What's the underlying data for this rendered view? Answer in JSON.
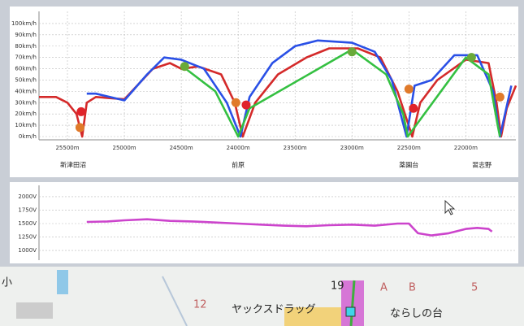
{
  "chart_data": [
    {
      "type": "line",
      "xlim": [
        25750,
        21560
      ],
      "ylim": [
        0,
        105
      ],
      "grid": true,
      "xticks": [
        {
          "value": 25500,
          "label": "25500m"
        },
        {
          "value": 25000,
          "label": "25000m"
        },
        {
          "value": 24500,
          "label": "24500m"
        },
        {
          "value": 24000,
          "label": "24000m"
        },
        {
          "value": 23500,
          "label": "23500m"
        },
        {
          "value": 23000,
          "label": "23000m"
        },
        {
          "value": 22500,
          "label": "22500m"
        },
        {
          "value": 22000,
          "label": "22000m"
        }
      ],
      "yticks": [
        {
          "value": 0,
          "label": "0km/h"
        },
        {
          "value": 10,
          "label": "10km/h"
        },
        {
          "value": 20,
          "label": "20km/h"
        },
        {
          "value": 30,
          "label": "30km/h"
        },
        {
          "value": 40,
          "label": "40km/h"
        },
        {
          "value": 50,
          "label": "50km/h"
        },
        {
          "value": 60,
          "label": "60km/h"
        },
        {
          "value": 70,
          "label": "70km/h"
        },
        {
          "value": 80,
          "label": "80km/h"
        },
        {
          "value": 90,
          "label": "90km/h"
        },
        {
          "value": 100,
          "label": "100km/h"
        }
      ],
      "series": [
        {
          "color": "#d42a2a",
          "x": [
            25750,
            25600,
            25500,
            25420,
            25370,
            25330,
            25250,
            25000,
            24750,
            24600,
            24500,
            24350,
            24150,
            24030,
            23960,
            23850,
            23650,
            23400,
            23200,
            22950,
            22750,
            22600,
            22470,
            22400,
            22250,
            22000,
            21800,
            21730,
            21690,
            21640,
            21560
          ],
          "values": [
            35,
            35,
            30,
            20,
            0,
            30,
            35,
            33,
            60,
            65,
            60,
            62,
            55,
            30,
            0,
            30,
            55,
            70,
            78,
            78,
            70,
            40,
            0,
            30,
            50,
            68,
            65,
            30,
            0,
            25,
            45
          ]
        },
        {
          "color": "#2a50e6",
          "x": [
            25330,
            25250,
            25000,
            24800,
            24650,
            24500,
            24300,
            24100,
            24020,
            23980,
            23900,
            23700,
            23500,
            23300,
            23000,
            22800,
            22650,
            22560,
            22520,
            22450,
            22300,
            22100,
            21900,
            21760,
            21700,
            21600
          ],
          "values": [
            38,
            38,
            32,
            55,
            70,
            68,
            60,
            30,
            10,
            0,
            35,
            65,
            80,
            85,
            83,
            75,
            50,
            15,
            0,
            45,
            50,
            72,
            72,
            40,
            0,
            45
          ]
        },
        {
          "color": "#34c041",
          "x": [
            24500,
            24200,
            24050,
            24000,
            23900,
            23000,
            22700,
            22550,
            22510,
            22000,
            21800,
            21720,
            21700
          ],
          "values": [
            63,
            40,
            10,
            0,
            25,
            77,
            55,
            20,
            0,
            70,
            55,
            10,
            0
          ]
        }
      ],
      "points": [
        {
          "color": "#e0232a",
          "x": 25380,
          "y": 22
        },
        {
          "color": "#e0232a",
          "x": 23930,
          "y": 28
        },
        {
          "color": "#e0232a",
          "x": 22460,
          "y": 25
        },
        {
          "color": "#e07a2a",
          "x": 25390,
          "y": 8
        },
        {
          "color": "#e07a2a",
          "x": 24020,
          "y": 30
        },
        {
          "color": "#e07a2a",
          "x": 22500,
          "y": 42
        },
        {
          "color": "#e07a2a",
          "x": 21700,
          "y": 35
        },
        {
          "color": "#6aaa3a",
          "x": 24470,
          "y": 62
        },
        {
          "color": "#6aaa3a",
          "x": 23000,
          "y": 75
        },
        {
          "color": "#6aaa3a",
          "x": 21950,
          "y": 70
        }
      ],
      "annotations": [
        {
          "text": "新津田沼",
          "x": 25450
        },
        {
          "text": "前原",
          "x": 24000
        },
        {
          "text": "薬園台",
          "x": 22500
        },
        {
          "text": "習志野",
          "x": 21860
        }
      ]
    },
    {
      "type": "line",
      "xlim": [
        25750,
        21560
      ],
      "ylim": [
        850,
        2150
      ],
      "grid": true,
      "yticks": [
        {
          "value": 1000,
          "label": "1000V"
        },
        {
          "value": 1250,
          "label": "1250V"
        },
        {
          "value": 1500,
          "label": "1500V"
        },
        {
          "value": 1750,
          "label": "1750V"
        },
        {
          "value": 2000,
          "label": "2000V"
        }
      ],
      "series": [
        {
          "color": "#cc44cc",
          "x": [
            25330,
            25150,
            25000,
            24800,
            24600,
            24400,
            24200,
            24000,
            23800,
            23600,
            23400,
            23200,
            23000,
            22800,
            22600,
            22500,
            22420,
            22300,
            22150,
            22000,
            21900,
            21800,
            21770
          ],
          "values": [
            1530,
            1540,
            1560,
            1580,
            1550,
            1540,
            1520,
            1500,
            1480,
            1460,
            1450,
            1470,
            1480,
            1460,
            1500,
            1500,
            1320,
            1280,
            1320,
            1400,
            1420,
            1400,
            1350
          ]
        }
      ]
    }
  ],
  "map": {
    "labels": [
      "小",
      "12",
      "ヤックスドラッグ",
      "19",
      "A",
      "B",
      "5",
      "ならしの台"
    ]
  }
}
